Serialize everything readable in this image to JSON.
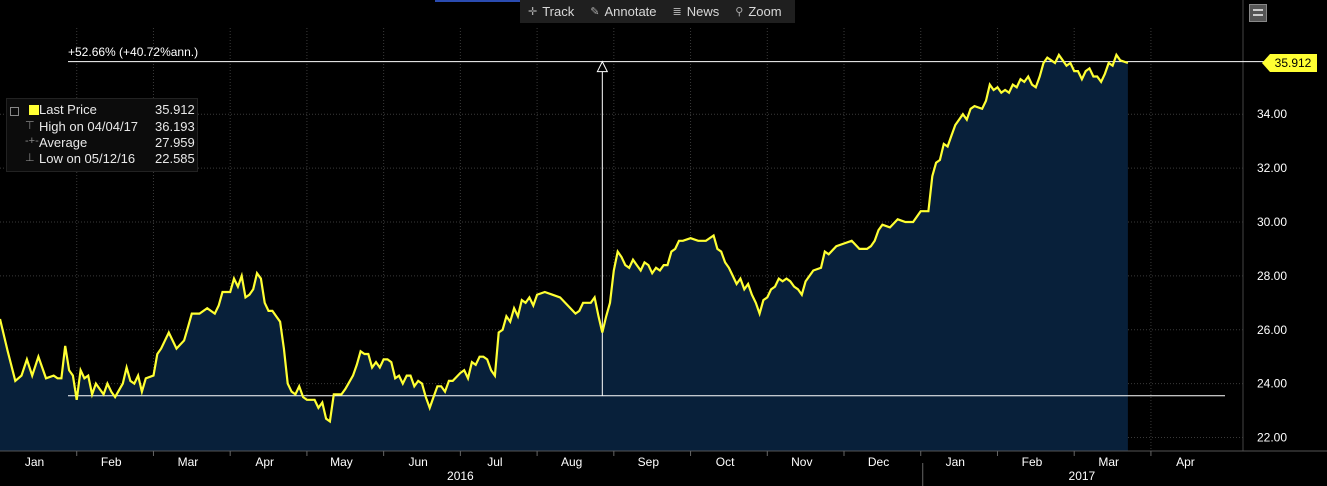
{
  "toolbar": {
    "track": "Track",
    "annotate": "Annotate",
    "news": "News",
    "zoom": "Zoom"
  },
  "legend": {
    "last_price_label": "Last Price",
    "last_price_value": "35.912",
    "high_label": "High on 04/04/17",
    "high_value": "36.193",
    "average_label": "Average",
    "average_value": "27.959",
    "low_label": "Low on 05/12/16",
    "low_value": "22.585"
  },
  "annotation": "+52.66% (+40.72%ann.)",
  "price_tag": "35.912",
  "colors": {
    "line": "#ffff33",
    "area": "#08203a",
    "grid": "#3a3a3a"
  },
  "chart_data": {
    "type": "area",
    "ylim": [
      21.5,
      37.2
    ],
    "y_ticks": [
      "22.00",
      "24.00",
      "26.00",
      "28.00",
      "30.00",
      "32.00",
      "34.00"
    ],
    "x_months": [
      "Jan",
      "Feb",
      "Mar",
      "Apr",
      "May",
      "Jun",
      "Jul",
      "Aug",
      "Sep",
      "Oct",
      "Nov",
      "Dec",
      "Jan",
      "Feb",
      "Mar",
      "Apr"
    ],
    "years": [
      "2016",
      "2017"
    ],
    "range": {
      "start": 0,
      "end": 16.2
    },
    "reference": {
      "low": 23.55,
      "high": 35.95,
      "marker_t": 7.85
    },
    "series": [
      {
        "values": [
          [
            0.0,
            26.4
          ],
          [
            0.1,
            25.2
          ],
          [
            0.2,
            24.1
          ],
          [
            0.28,
            24.3
          ],
          [
            0.35,
            24.9
          ],
          [
            0.42,
            24.3
          ],
          [
            0.5,
            25.0
          ],
          [
            0.55,
            24.6
          ],
          [
            0.6,
            24.2
          ],
          [
            0.7,
            24.3
          ],
          [
            0.75,
            24.2
          ],
          [
            0.8,
            24.2
          ],
          [
            0.85,
            25.4
          ],
          [
            0.9,
            24.5
          ],
          [
            0.95,
            24.3
          ],
          [
            1.0,
            23.4
          ],
          [
            1.05,
            24.5
          ],
          [
            1.1,
            24.2
          ],
          [
            1.15,
            24.3
          ],
          [
            1.2,
            23.6
          ],
          [
            1.25,
            24.0
          ],
          [
            1.3,
            23.8
          ],
          [
            1.35,
            23.6
          ],
          [
            1.4,
            24.0
          ],
          [
            1.45,
            23.7
          ],
          [
            1.5,
            23.5
          ],
          [
            1.6,
            24.0
          ],
          [
            1.65,
            24.6
          ],
          [
            1.7,
            24.1
          ],
          [
            1.75,
            24.0
          ],
          [
            1.8,
            24.3
          ],
          [
            1.85,
            23.7
          ],
          [
            1.9,
            24.2
          ],
          [
            2.0,
            24.3
          ],
          [
            2.05,
            25.1
          ],
          [
            2.1,
            25.3
          ],
          [
            2.2,
            25.9
          ],
          [
            2.3,
            25.3
          ],
          [
            2.4,
            25.6
          ],
          [
            2.45,
            26.1
          ],
          [
            2.5,
            26.6
          ],
          [
            2.6,
            26.6
          ],
          [
            2.7,
            26.8
          ],
          [
            2.8,
            26.6
          ],
          [
            2.85,
            26.9
          ],
          [
            2.9,
            27.4
          ],
          [
            3.0,
            27.4
          ],
          [
            3.05,
            27.9
          ],
          [
            3.1,
            27.6
          ],
          [
            3.15,
            28.0
          ],
          [
            3.2,
            27.2
          ],
          [
            3.25,
            27.3
          ],
          [
            3.3,
            27.5
          ],
          [
            3.35,
            28.1
          ],
          [
            3.4,
            27.9
          ],
          [
            3.45,
            27.0
          ],
          [
            3.5,
            26.7
          ],
          [
            3.55,
            26.7
          ],
          [
            3.6,
            26.5
          ],
          [
            3.65,
            26.3
          ],
          [
            3.7,
            25.3
          ],
          [
            3.75,
            24.0
          ],
          [
            3.8,
            23.7
          ],
          [
            3.85,
            23.6
          ],
          [
            3.9,
            23.9
          ],
          [
            3.95,
            23.5
          ],
          [
            4.0,
            23.4
          ],
          [
            4.1,
            23.4
          ],
          [
            4.15,
            23.1
          ],
          [
            4.2,
            23.3
          ],
          [
            4.25,
            22.7
          ],
          [
            4.3,
            22.6
          ],
          [
            4.35,
            23.6
          ],
          [
            4.45,
            23.6
          ],
          [
            4.5,
            23.8
          ],
          [
            4.6,
            24.3
          ],
          [
            4.65,
            24.7
          ],
          [
            4.7,
            25.2
          ],
          [
            4.75,
            25.1
          ],
          [
            4.8,
            25.1
          ],
          [
            4.85,
            24.6
          ],
          [
            4.9,
            24.8
          ],
          [
            4.95,
            24.6
          ],
          [
            5.0,
            24.9
          ],
          [
            5.05,
            24.9
          ],
          [
            5.1,
            24.8
          ],
          [
            5.15,
            24.2
          ],
          [
            5.2,
            24.3
          ],
          [
            5.25,
            24.0
          ],
          [
            5.3,
            24.3
          ],
          [
            5.35,
            24.3
          ],
          [
            5.4,
            23.9
          ],
          [
            5.45,
            24.1
          ],
          [
            5.5,
            24.0
          ],
          [
            5.55,
            23.5
          ],
          [
            5.6,
            23.1
          ],
          [
            5.65,
            23.5
          ],
          [
            5.7,
            23.9
          ],
          [
            5.75,
            23.9
          ],
          [
            5.8,
            23.7
          ],
          [
            5.85,
            24.1
          ],
          [
            5.9,
            24.1
          ],
          [
            6.0,
            24.4
          ],
          [
            6.05,
            24.5
          ],
          [
            6.1,
            24.2
          ],
          [
            6.15,
            24.8
          ],
          [
            6.2,
            24.7
          ],
          [
            6.25,
            25.0
          ],
          [
            6.3,
            25.0
          ],
          [
            6.35,
            24.9
          ],
          [
            6.4,
            24.5
          ],
          [
            6.45,
            24.3
          ],
          [
            6.5,
            25.9
          ],
          [
            6.55,
            26.0
          ],
          [
            6.6,
            26.5
          ],
          [
            6.65,
            26.3
          ],
          [
            6.7,
            26.8
          ],
          [
            6.75,
            26.5
          ],
          [
            6.8,
            27.1
          ],
          [
            6.85,
            27.0
          ],
          [
            6.9,
            27.2
          ],
          [
            6.95,
            26.9
          ],
          [
            7.0,
            27.3
          ],
          [
            7.1,
            27.4
          ],
          [
            7.2,
            27.3
          ],
          [
            7.3,
            27.2
          ],
          [
            7.4,
            26.9
          ],
          [
            7.5,
            26.6
          ],
          [
            7.55,
            26.7
          ],
          [
            7.6,
            27.0
          ],
          [
            7.7,
            27.0
          ],
          [
            7.75,
            27.2
          ],
          [
            7.8,
            26.5
          ],
          [
            7.85,
            25.9
          ],
          [
            7.9,
            26.5
          ],
          [
            7.95,
            27.0
          ],
          [
            8.0,
            28.2
          ],
          [
            8.05,
            28.9
          ],
          [
            8.1,
            28.7
          ],
          [
            8.15,
            28.4
          ],
          [
            8.2,
            28.3
          ],
          [
            8.25,
            28.6
          ],
          [
            8.3,
            28.4
          ],
          [
            8.35,
            28.2
          ],
          [
            8.4,
            28.5
          ],
          [
            8.45,
            28.4
          ],
          [
            8.5,
            28.1
          ],
          [
            8.55,
            28.3
          ],
          [
            8.6,
            28.2
          ],
          [
            8.65,
            28.4
          ],
          [
            8.7,
            28.4
          ],
          [
            8.75,
            28.9
          ],
          [
            8.8,
            29.0
          ],
          [
            8.85,
            29.3
          ],
          [
            8.9,
            29.3
          ],
          [
            9.0,
            29.4
          ],
          [
            9.1,
            29.3
          ],
          [
            9.2,
            29.3
          ],
          [
            9.3,
            29.5
          ],
          [
            9.35,
            29.0
          ],
          [
            9.4,
            28.9
          ],
          [
            9.45,
            28.5
          ],
          [
            9.5,
            28.3
          ],
          [
            9.55,
            28.0
          ],
          [
            9.6,
            27.7
          ],
          [
            9.65,
            27.9
          ],
          [
            9.7,
            27.5
          ],
          [
            9.75,
            27.7
          ],
          [
            9.8,
            27.3
          ],
          [
            9.85,
            27.0
          ],
          [
            9.9,
            26.6
          ],
          [
            9.95,
            27.1
          ],
          [
            10.0,
            27.2
          ],
          [
            10.05,
            27.5
          ],
          [
            10.1,
            27.6
          ],
          [
            10.15,
            27.9
          ],
          [
            10.2,
            27.8
          ],
          [
            10.25,
            27.9
          ],
          [
            10.3,
            27.8
          ],
          [
            10.35,
            27.6
          ],
          [
            10.4,
            27.5
          ],
          [
            10.45,
            27.3
          ],
          [
            10.5,
            27.8
          ],
          [
            10.55,
            28.0
          ],
          [
            10.6,
            28.2
          ],
          [
            10.7,
            28.3
          ],
          [
            10.75,
            28.9
          ],
          [
            10.8,
            28.8
          ],
          [
            10.9,
            29.1
          ],
          [
            11.0,
            29.2
          ],
          [
            11.1,
            29.3
          ],
          [
            11.2,
            29.0
          ],
          [
            11.3,
            29.0
          ],
          [
            11.35,
            29.1
          ],
          [
            11.4,
            29.3
          ],
          [
            11.45,
            29.7
          ],
          [
            11.5,
            29.9
          ],
          [
            11.6,
            29.8
          ],
          [
            11.7,
            30.1
          ],
          [
            11.8,
            30.0
          ],
          [
            11.9,
            30.0
          ],
          [
            12.0,
            30.4
          ],
          [
            12.1,
            30.4
          ],
          [
            12.15,
            31.7
          ],
          [
            12.2,
            32.2
          ],
          [
            12.25,
            32.3
          ],
          [
            12.3,
            32.9
          ],
          [
            12.35,
            32.8
          ],
          [
            12.4,
            33.2
          ],
          [
            12.45,
            33.6
          ],
          [
            12.5,
            33.8
          ],
          [
            12.55,
            34.0
          ],
          [
            12.6,
            33.8
          ],
          [
            12.65,
            34.2
          ],
          [
            12.7,
            34.3
          ],
          [
            12.8,
            34.2
          ],
          [
            12.85,
            34.5
          ],
          [
            12.9,
            35.1
          ],
          [
            12.95,
            34.9
          ],
          [
            13.0,
            35.0
          ],
          [
            13.05,
            34.8
          ],
          [
            13.1,
            34.9
          ],
          [
            13.15,
            34.8
          ],
          [
            13.2,
            35.1
          ],
          [
            13.25,
            35.0
          ],
          [
            13.3,
            35.3
          ],
          [
            13.35,
            35.2
          ],
          [
            13.4,
            35.4
          ],
          [
            13.45,
            35.1
          ],
          [
            13.5,
            35.0
          ],
          [
            13.55,
            35.4
          ],
          [
            13.6,
            35.9
          ],
          [
            13.65,
            36.1
          ],
          [
            13.7,
            36.0
          ],
          [
            13.75,
            35.9
          ],
          [
            13.8,
            36.2
          ],
          [
            13.85,
            36.0
          ],
          [
            13.9,
            35.8
          ],
          [
            13.95,
            35.9
          ],
          [
            14.0,
            35.6
          ],
          [
            14.05,
            35.6
          ],
          [
            14.1,
            35.3
          ],
          [
            14.15,
            35.6
          ],
          [
            14.2,
            35.7
          ],
          [
            14.25,
            35.4
          ],
          [
            14.3,
            35.4
          ],
          [
            14.35,
            35.2
          ],
          [
            14.4,
            35.5
          ],
          [
            14.45,
            35.9
          ],
          [
            14.5,
            35.8
          ],
          [
            14.55,
            36.2
          ],
          [
            14.6,
            36.0
          ],
          [
            14.7,
            35.9
          ]
        ]
      }
    ]
  }
}
